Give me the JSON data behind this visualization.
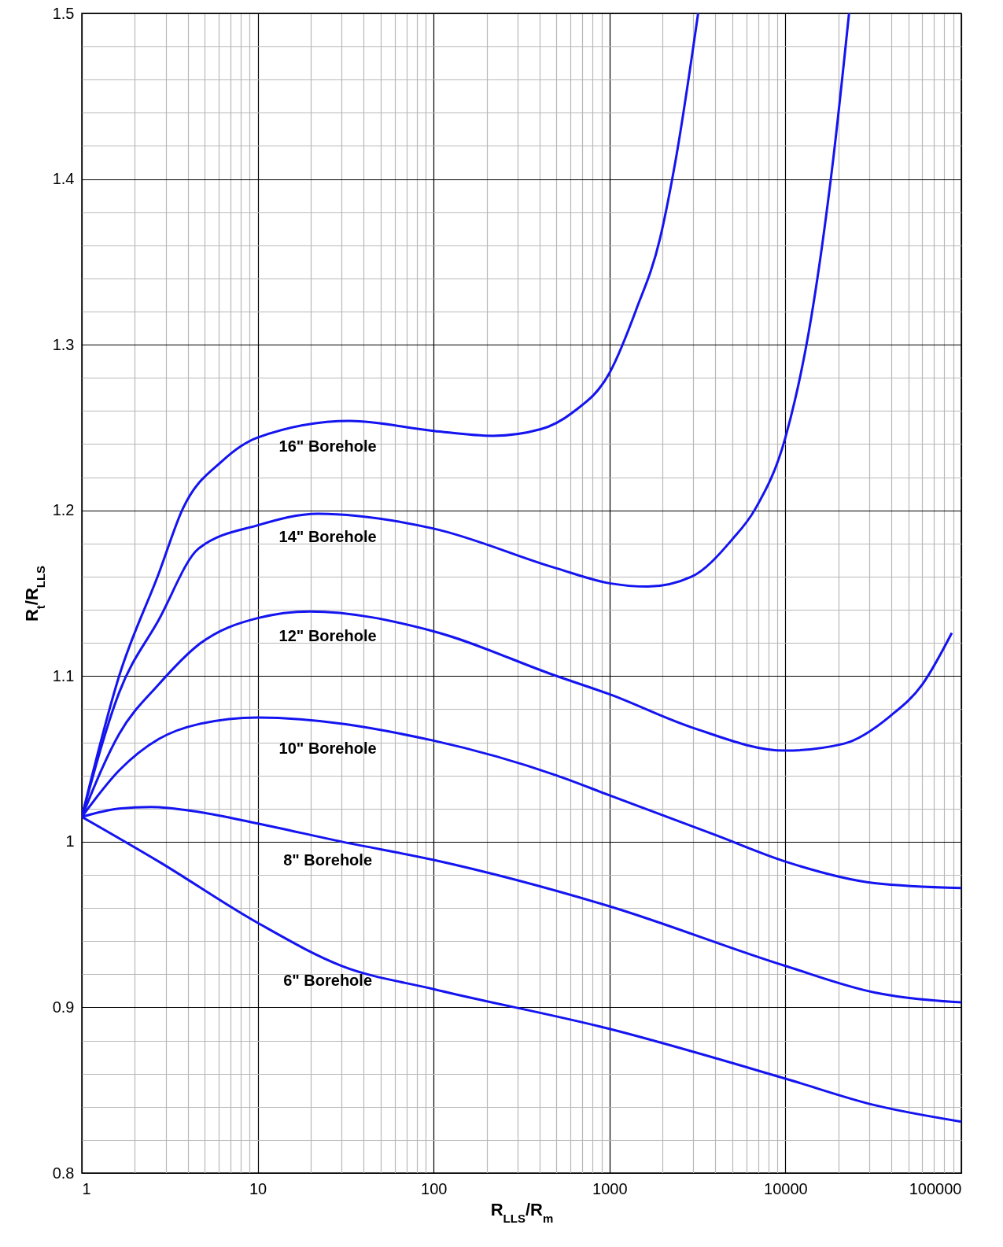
{
  "chart_data": {
    "type": "line",
    "xlabel": "R$_{LLS}$/R$_{m}$",
    "ylabel": "R$_{t}$/R$_{LLS}$",
    "log": "x",
    "grid": true,
    "marker": "none",
    "line_style": "solid",
    "xlim": [
      1,
      100000
    ],
    "ylim": [
      0.8,
      1.5
    ],
    "xticks": [
      1,
      {
        "value": 2,
        "label": null
      },
      {
        "value": 3,
        "label": null
      },
      {
        "value": 4,
        "label": null
      },
      {
        "value": 5,
        "label": null
      },
      {
        "value": 6,
        "label": null
      },
      {
        "value": 7,
        "label": null
      },
      {
        "value": 8,
        "label": null
      },
      {
        "value": 9,
        "label": null
      },
      10,
      {
        "value": 20,
        "label": null
      },
      {
        "value": 30,
        "label": null
      },
      {
        "value": 40,
        "label": null
      },
      {
        "value": 50,
        "label": null
      },
      {
        "value": 60,
        "label": null
      },
      {
        "value": 70,
        "label": null
      },
      {
        "value": 80,
        "label": null
      },
      {
        "value": 90,
        "label": null
      },
      100,
      {
        "value": 200,
        "label": null
      },
      {
        "value": 300,
        "label": null
      },
      {
        "value": 400,
        "label": null
      },
      {
        "value": 500,
        "label": null
      },
      {
        "value": 600,
        "label": null
      },
      {
        "value": 700,
        "label": null
      },
      {
        "value": 800,
        "label": null
      },
      {
        "value": 900,
        "label": null
      },
      1000,
      {
        "value": 2000,
        "label": null
      },
      {
        "value": 3000,
        "label": null
      },
      {
        "value": 4000,
        "label": null
      },
      {
        "value": 5000,
        "label": null
      },
      {
        "value": 6000,
        "label": null
      },
      {
        "value": 7000,
        "label": null
      },
      {
        "value": 8000,
        "label": null
      },
      {
        "value": 9000,
        "label": null
      },
      10000,
      {
        "value": 20000,
        "label": null
      },
      {
        "value": 30000,
        "label": null
      },
      {
        "value": 40000,
        "label": null
      },
      {
        "value": 50000,
        "label": null
      },
      {
        "value": 60000,
        "label": null
      },
      {
        "value": 70000,
        "label": null
      },
      {
        "value": 80000,
        "label": null
      },
      {
        "value": 90000,
        "label": null
      },
      100000
    ],
    "yticks": [
      0.8,
      {
        "value": 0.82,
        "label": null
      },
      {
        "value": 0.84,
        "label": null
      },
      {
        "value": 0.86,
        "label": null
      },
      {
        "value": 0.88,
        "label": null
      },
      0.9,
      {
        "value": 0.92,
        "label": null
      },
      {
        "value": 0.94,
        "label": null
      },
      {
        "value": 0.96,
        "label": null
      },
      {
        "value": 0.98,
        "label": null
      },
      1,
      {
        "value": 1.02,
        "label": null
      },
      {
        "value": 1.04,
        "label": null
      },
      {
        "value": 1.06,
        "label": null
      },
      {
        "value": 1.08,
        "label": null
      },
      1.1,
      {
        "value": 1.12,
        "label": null
      },
      {
        "value": 1.14,
        "label": null
      },
      {
        "value": 1.16,
        "label": null
      },
      {
        "value": 1.18,
        "label": null
      },
      1.2,
      {
        "value": 1.22,
        "label": null
      },
      {
        "value": 1.24,
        "label": null
      },
      {
        "value": 1.26,
        "label": null
      },
      {
        "value": 1.28,
        "label": null
      },
      1.3,
      {
        "value": 1.32,
        "label": null
      },
      {
        "value": 1.34,
        "label": null
      },
      {
        "value": 1.36,
        "label": null
      },
      {
        "value": 1.38,
        "label": null
      },
      1.4,
      {
        "value": 1.42,
        "label": null
      },
      {
        "value": 1.44,
        "label": null
      },
      {
        "value": 1.46,
        "label": null
      },
      {
        "value": 1.48,
        "label": null
      },
      1.5
    ],
    "series": [
      {
        "name": "16\" Borehole",
        "color": "#1414f0",
        "x": [
          1,
          1.63,
          2.74,
          3.75,
          6.31,
          10,
          33.4,
          100,
          217,
          406,
          615,
          1000,
          1416,
          1936,
          2382,
          3190
        ],
        "values": [
          1.015,
          1.1,
          1.162,
          1.201,
          1.23,
          1.244,
          1.254,
          1.248,
          1.245,
          1.249,
          1.259,
          1.283,
          1.321,
          1.364,
          1.412,
          1.5
        ]
      },
      {
        "name": "14\" Borehole",
        "color": "#1414f0",
        "x": [
          1,
          1.63,
          2.74,
          4.62,
          10,
          22,
          100,
          500,
          1000,
          1655,
          2934,
          4940,
          6750,
          10000,
          14000,
          18700,
          23000
        ],
        "values": [
          1.015,
          1.09,
          1.134,
          1.177,
          1.191,
          1.198,
          1.189,
          1.165,
          1.156,
          1.154,
          1.16,
          1.182,
          1.201,
          1.244,
          1.316,
          1.412,
          1.5
        ]
      },
      {
        "name": "12\" Borehole",
        "color": "#1414f0",
        "x": [
          1,
          1.63,
          2.74,
          4.62,
          10,
          19.8,
          100,
          500,
          1000,
          2934,
          10000,
          21200,
          39600,
          60100,
          88300
        ],
        "values": [
          1.015,
          1.065,
          1.095,
          1.119,
          1.135,
          1.139,
          1.127,
          1.1,
          1.089,
          1.069,
          1.055,
          1.059,
          1.076,
          1.095,
          1.126
        ]
      },
      {
        "name": "10\" Borehole",
        "color": "#1414f0",
        "x": [
          1,
          1.63,
          2.74,
          4.62,
          10,
          100,
          500,
          1000,
          4010,
          10000,
          32100,
          100000
        ],
        "values": [
          1.015,
          1.043,
          1.062,
          1.071,
          1.075,
          1.061,
          1.04,
          1.028,
          1.004,
          0.988,
          0.975,
          0.972
        ]
      },
      {
        "name": "8\" Borehole",
        "color": "#1414f0",
        "x": [
          1,
          1.63,
          2.47,
          4.62,
          10,
          30.1,
          100,
          1000,
          10000,
          32100,
          100000
        ],
        "values": [
          1.015,
          1.02,
          1.021,
          1.018,
          1.011,
          1.0,
          0.989,
          0.961,
          0.925,
          0.909,
          0.903
        ]
      },
      {
        "name": "6\" Borehole",
        "color": "#1414f0",
        "x": [
          1,
          2.74,
          10,
          30.1,
          100,
          1000,
          10000,
          32100,
          100000
        ],
        "values": [
          1.015,
          0.988,
          0.951,
          0.925,
          0.911,
          0.887,
          0.857,
          0.841,
          0.831
        ]
      }
    ]
  }
}
